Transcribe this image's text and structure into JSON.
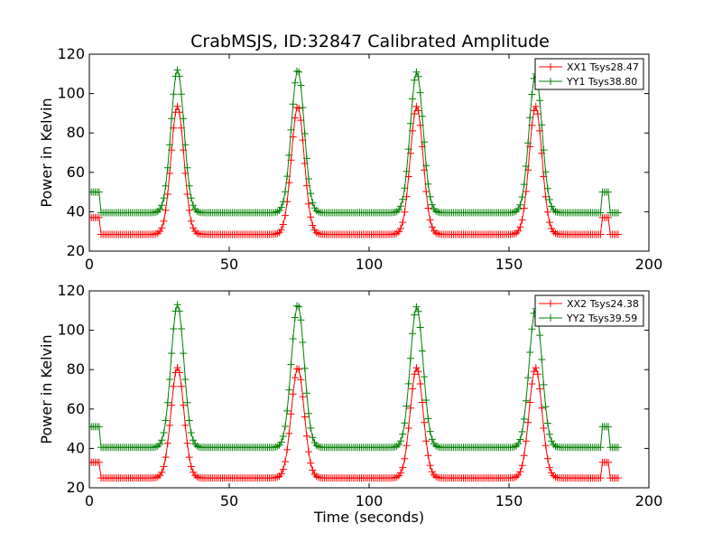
{
  "title": "CrabMSJS, ID:32847 Calibrated Amplitude",
  "colors": {
    "xx": "#ff0000",
    "yy": "#008000",
    "axes": "#000000"
  },
  "chart_data": [
    {
      "type": "line",
      "title": "CrabMSJS, ID:32847 Calibrated Amplitude",
      "xlabel": "",
      "ylabel": "Power in Kelvin",
      "xlim": [
        0,
        200
      ],
      "ylim": [
        20,
        120
      ],
      "xticks": [
        0,
        50,
        100,
        150,
        200
      ],
      "yticks": [
        20,
        40,
        60,
        80,
        100,
        120
      ],
      "grid": false,
      "legend_position": "top-right",
      "marker": "+",
      "series": [
        {
          "name": "XX1 Tsys28.47",
          "color": "#ff0000",
          "baseline": 28.5,
          "segments": [
            [
              0,
              4,
              37
            ],
            [
              4,
              183,
              28.5
            ],
            [
              183,
              186,
              37
            ],
            [
              186,
              189,
              28.5
            ]
          ],
          "peaks": [
            {
              "center": 31.5,
              "height": 93.5
            },
            {
              "center": 74.5,
              "height": 93.5
            },
            {
              "center": 117.0,
              "height": 93.5
            },
            {
              "center": 159.5,
              "height": 93.5
            }
          ]
        },
        {
          "name": "YY1 Tsys38.80",
          "color": "#008000",
          "baseline": 39.5,
          "segments": [
            [
              0,
              4,
              50
            ],
            [
              4,
              183,
              39.5
            ],
            [
              183,
              186,
              50
            ],
            [
              186,
              189,
              39.5
            ]
          ],
          "peaks": [
            {
              "center": 31.5,
              "height": 112
            },
            {
              "center": 74.5,
              "height": 112
            },
            {
              "center": 117.0,
              "height": 111
            },
            {
              "center": 159.5,
              "height": 110
            }
          ]
        }
      ]
    },
    {
      "type": "line",
      "title": "",
      "xlabel": "Time (seconds)",
      "ylabel": "Power in Kelvin",
      "xlim": [
        0,
        200
      ],
      "ylim": [
        20,
        120
      ],
      "xticks": [
        0,
        50,
        100,
        150,
        200
      ],
      "yticks": [
        20,
        40,
        60,
        80,
        100,
        120
      ],
      "grid": false,
      "legend_position": "top-right",
      "marker": "+",
      "series": [
        {
          "name": "XX2 Tsys24.38",
          "color": "#ff0000",
          "baseline": 25,
          "segments": [
            [
              0,
              4,
              33
            ],
            [
              4,
              183,
              25
            ],
            [
              183,
              186,
              33
            ],
            [
              186,
              189,
              25
            ]
          ],
          "peaks": [
            {
              "center": 31.5,
              "height": 81
            },
            {
              "center": 74.5,
              "height": 81
            },
            {
              "center": 117.0,
              "height": 81
            },
            {
              "center": 159.5,
              "height": 81
            }
          ]
        },
        {
          "name": "YY2 Tsys39.59",
          "color": "#008000",
          "baseline": 40.5,
          "segments": [
            [
              0,
              4,
              51
            ],
            [
              4,
              183,
              40.5
            ],
            [
              183,
              186,
              51
            ],
            [
              186,
              189,
              40.5
            ]
          ],
          "peaks": [
            {
              "center": 31.5,
              "height": 113
            },
            {
              "center": 74.5,
              "height": 113
            },
            {
              "center": 117.0,
              "height": 112
            },
            {
              "center": 159.5,
              "height": 111
            }
          ]
        }
      ]
    }
  ]
}
